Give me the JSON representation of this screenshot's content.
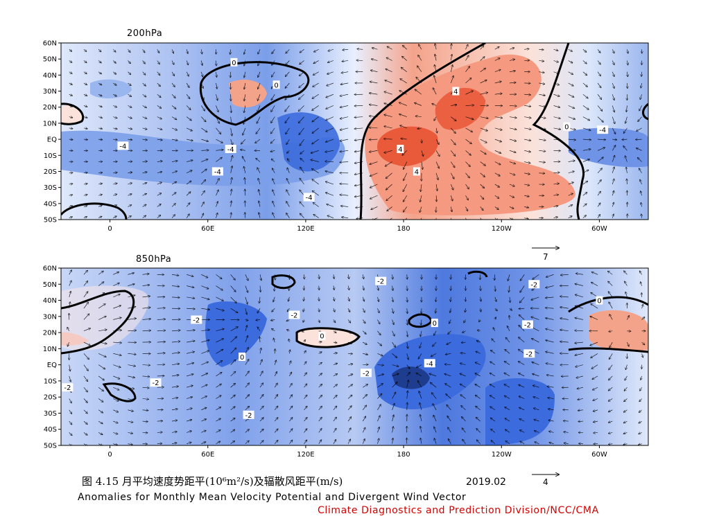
{
  "figure": {
    "caption_cn": "图 4.15  月平均速度势距平(10⁶m²/s)及辐散风距平(m/s)",
    "date": "2019.02",
    "caption_en": "Anomalies for Monthly Mean Velocity Potential and Divergent Wind Vector",
    "organization": "Climate Diagnostics and Prediction Division/NCC/CMA"
  },
  "chart_data": [
    {
      "type": "heatmap",
      "title": "200hPa",
      "xlabel": "",
      "ylabel": "",
      "x_tick_labels": [
        "0",
        "60E",
        "120E",
        "180",
        "120W",
        "60W"
      ],
      "y_tick_labels": [
        "60N",
        "50N",
        "40N",
        "30N",
        "20N",
        "10N",
        "EQ",
        "10S",
        "20S",
        "30S",
        "40S",
        "50S"
      ],
      "lon_range": [
        -30,
        330
      ],
      "lat_range": [
        -50,
        60
      ],
      "contour_labels": [
        {
          "text": "-4",
          "lon": 8,
          "lat": -4
        },
        {
          "text": "-4",
          "lon": 74,
          "lat": -6
        },
        {
          "text": "-4",
          "lon": 66,
          "lat": -20
        },
        {
          "text": "-4",
          "lon": 122,
          "lat": -36
        },
        {
          "text": "4",
          "lon": 178,
          "lat": -6
        },
        {
          "text": "4",
          "lon": 188,
          "lat": -20
        },
        {
          "text": "4",
          "lon": 212,
          "lat": 30
        },
        {
          "text": "0",
          "lon": 76,
          "lat": 48
        },
        {
          "text": "0",
          "lon": 102,
          "lat": 34
        },
        {
          "text": "0",
          "lon": 280,
          "lat": 8
        },
        {
          "text": "-4",
          "lon": 302,
          "lat": 6
        }
      ],
      "reference_vector": {
        "value": "7",
        "unit": "m/s"
      },
      "scale": {
        "type": "diverging",
        "negative_color": "#2f5ed8",
        "positive_color": "#e84a2a"
      }
    },
    {
      "type": "heatmap",
      "title": "850hPa",
      "xlabel": "",
      "ylabel": "",
      "x_tick_labels": [
        "0",
        "60E",
        "120E",
        "180",
        "120W",
        "60W"
      ],
      "y_tick_labels": [
        "60N",
        "50N",
        "40N",
        "30N",
        "20N",
        "10N",
        "EQ",
        "10S",
        "20S",
        "30S",
        "40S",
        "50S"
      ],
      "lon_range": [
        -30,
        330
      ],
      "lat_range": [
        -50,
        60
      ],
      "contour_labels": [
        {
          "text": "-2",
          "lon": -26,
          "lat": -14
        },
        {
          "text": "-2",
          "lon": 28,
          "lat": -11
        },
        {
          "text": "-2",
          "lon": 53,
          "lat": 28
        },
        {
          "text": "-2",
          "lon": 85,
          "lat": -31
        },
        {
          "text": "-2",
          "lon": 113,
          "lat": 31
        },
        {
          "text": "-2",
          "lon": 157,
          "lat": -5
        },
        {
          "text": "-2",
          "lon": 166,
          "lat": 52
        },
        {
          "text": "-4",
          "lon": 196,
          "lat": 1
        },
        {
          "text": "-2",
          "lon": 257,
          "lat": 7
        },
        {
          "text": "-2",
          "lon": 256,
          "lat": 25
        },
        {
          "text": "-2",
          "lon": 260,
          "lat": 50
        },
        {
          "text": "0",
          "lon": 81,
          "lat": 5
        },
        {
          "text": "0",
          "lon": 130,
          "lat": 18
        },
        {
          "text": "0",
          "lon": 199,
          "lat": 26
        },
        {
          "text": "0",
          "lon": 300,
          "lat": 40
        }
      ],
      "reference_vector": {
        "value": "4",
        "unit": "m/s"
      },
      "scale": {
        "type": "diverging",
        "negative_color": "#2f5ed8",
        "positive_color": "#e84a2a"
      }
    }
  ]
}
